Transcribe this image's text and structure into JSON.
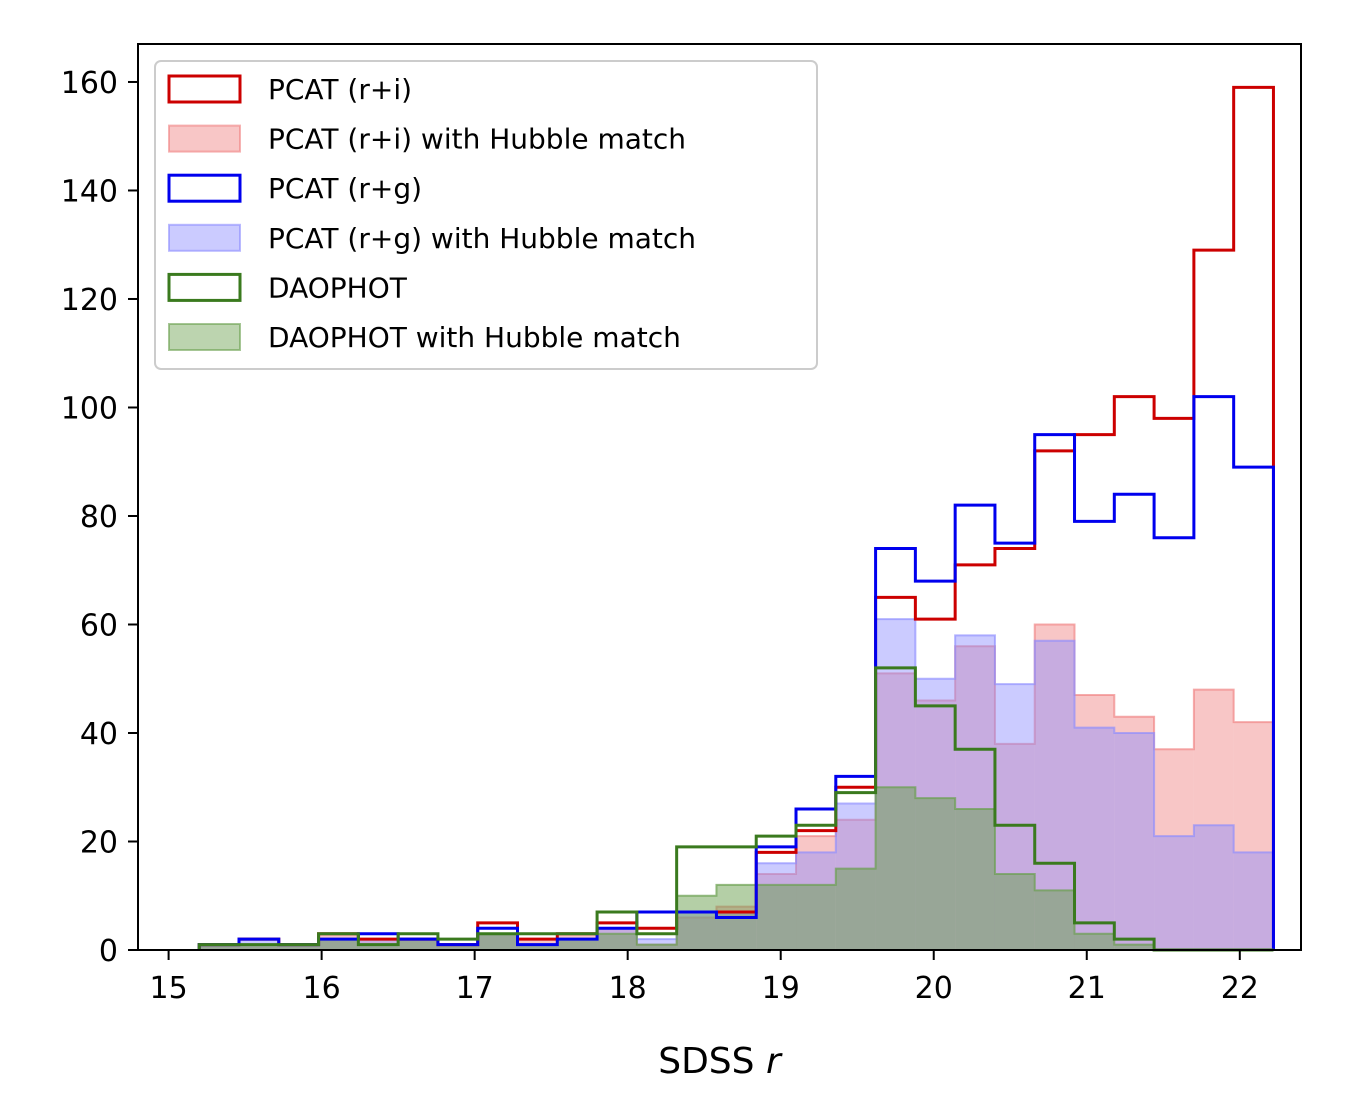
{
  "chart_data": {
    "type": "bar",
    "histogram": true,
    "title": "",
    "xlabel": "SDSS",
    "xlabel_italic": "r",
    "ylabel": "",
    "xlim": [
      14.8,
      22.4
    ],
    "ylim": [
      0,
      167
    ],
    "xticks": [
      "15",
      "16",
      "17",
      "18",
      "19",
      "20",
      "21",
      "22"
    ],
    "yticks": [
      "0",
      "20",
      "40",
      "60",
      "80",
      "100",
      "120",
      "140",
      "160"
    ],
    "grid": false,
    "legend_position": "upper-left",
    "bin_edges": [
      15.2,
      15.46,
      15.72,
      15.98,
      16.24,
      16.5,
      16.76,
      17.02,
      17.28,
      17.54,
      17.8,
      18.06,
      18.32,
      18.58,
      18.84,
      19.1,
      19.36,
      19.62,
      19.88,
      20.14,
      20.4,
      20.66,
      20.92,
      21.18,
      21.44,
      21.7,
      21.96,
      22.22
    ],
    "series": [
      {
        "name": "PCAT (r+i) with Hubble match",
        "style": "filled",
        "color": "#f08080",
        "opacity": 0.45,
        "values": [
          1,
          1,
          1,
          3,
          2,
          2,
          1,
          3,
          2,
          3,
          4,
          1,
          6,
          8,
          14,
          21,
          24,
          51,
          46,
          56,
          38,
          60,
          47,
          43,
          37,
          48,
          42
        ]
      },
      {
        "name": "PCAT (r+g) with Hubble match",
        "style": "filled",
        "color": "#8c8cff",
        "opacity": 0.45,
        "values": [
          1,
          2,
          1,
          2,
          2,
          2,
          1,
          3,
          1,
          2,
          4,
          2,
          7,
          7,
          16,
          18,
          27,
          61,
          50,
          58,
          49,
          57,
          41,
          40,
          21,
          23,
          18
        ]
      },
      {
        "name": "DAOPHOT with Hubble match",
        "style": "filled",
        "color": "#6aa04e",
        "opacity": 0.5,
        "values": [
          1,
          1,
          1,
          2,
          1,
          2,
          1,
          3,
          1,
          2,
          3,
          1,
          10,
          12,
          12,
          12,
          15,
          30,
          28,
          26,
          14,
          11,
          3,
          1,
          0,
          0,
          0
        ]
      },
      {
        "name": "PCAT (r+i)",
        "style": "step",
        "color": "#cc0000",
        "values": [
          1,
          2,
          1,
          3,
          2,
          2,
          1,
          5,
          2,
          3,
          5,
          4,
          7,
          7,
          18,
          22,
          30,
          65,
          61,
          71,
          74,
          92,
          95,
          102,
          98,
          129,
          159
        ]
      },
      {
        "name": "PCAT (r+g)",
        "style": "step",
        "color": "#0000ee",
        "values": [
          1,
          2,
          1,
          2,
          3,
          2,
          1,
          4,
          1,
          2,
          4,
          7,
          7,
          6,
          19,
          26,
          32,
          74,
          68,
          82,
          75,
          95,
          79,
          84,
          76,
          102,
          89
        ]
      },
      {
        "name": "DAOPHOT",
        "style": "step",
        "color": "#3a7a1e",
        "values": [
          1,
          1,
          1,
          3,
          1,
          3,
          2,
          3,
          3,
          3,
          7,
          3,
          19,
          19,
          21,
          23,
          29,
          52,
          45,
          37,
          23,
          16,
          5,
          2,
          0,
          0,
          0
        ]
      }
    ],
    "legend": [
      {
        "label": "PCAT (r+i)",
        "swatch": "step",
        "color": "#cc0000"
      },
      {
        "label": "PCAT (r+i) with Hubble match",
        "swatch": "filled",
        "color": "#f08080"
      },
      {
        "label": "PCAT (r+g)",
        "swatch": "step",
        "color": "#0000ee"
      },
      {
        "label": "PCAT (r+g) with Hubble match",
        "swatch": "filled",
        "color": "#8c8cff"
      },
      {
        "label": "DAOPHOT",
        "swatch": "step",
        "color": "#3a7a1e"
      },
      {
        "label": "DAOPHOT with Hubble match",
        "swatch": "filled",
        "color": "#6aa04e"
      }
    ]
  }
}
